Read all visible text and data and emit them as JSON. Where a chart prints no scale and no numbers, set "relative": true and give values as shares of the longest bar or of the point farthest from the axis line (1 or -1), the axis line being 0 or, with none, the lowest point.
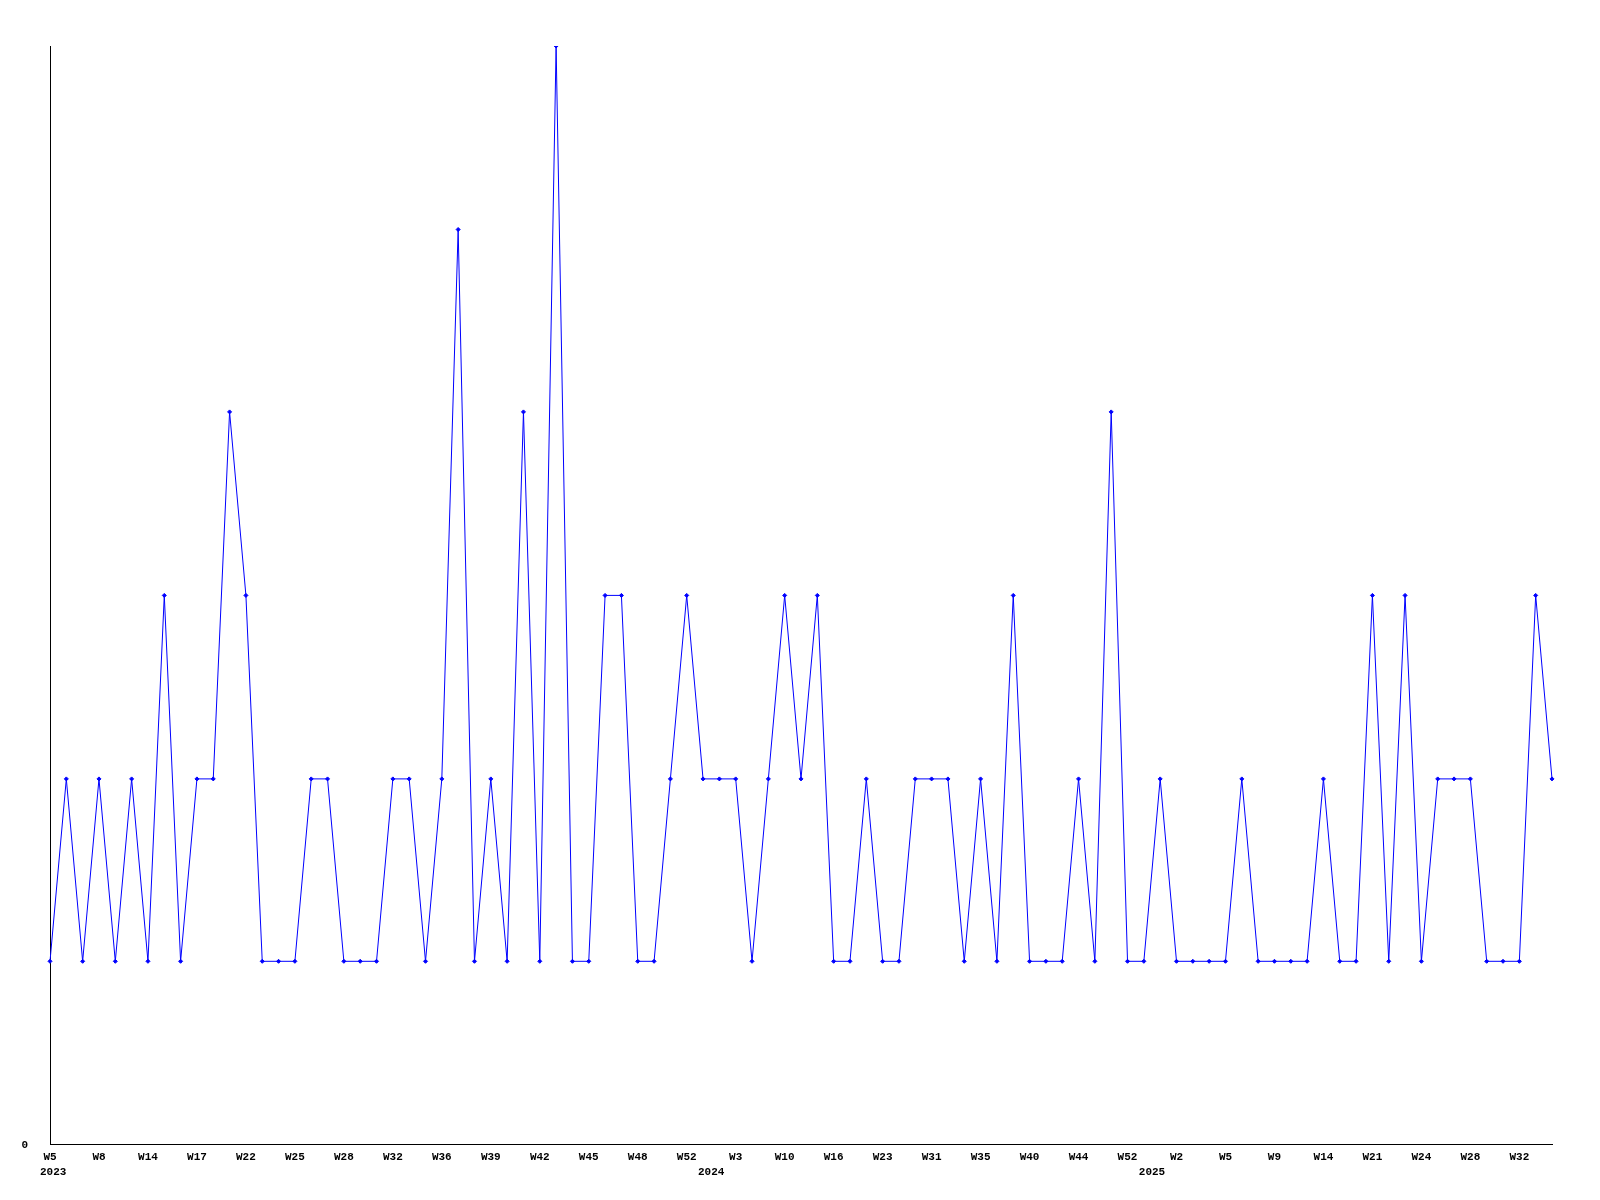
{
  "chart_data": {
    "type": "line",
    "relative": true,
    "color": "#0000ff",
    "marker": "diamond",
    "grid": false,
    "legend": false,
    "categories": [
      "W5",
      null,
      null,
      "W8",
      null,
      null,
      "W14",
      null,
      null,
      "W17",
      null,
      null,
      "W22",
      null,
      null,
      "W25",
      null,
      null,
      "W28",
      null,
      null,
      "W32",
      null,
      null,
      "W36",
      null,
      null,
      "W39",
      null,
      null,
      "W42",
      null,
      null,
      "W45",
      null,
      null,
      "W48",
      null,
      null,
      "W52",
      null,
      null,
      "W3",
      null,
      null,
      "W10",
      null,
      null,
      "W16",
      null,
      null,
      "W23",
      null,
      null,
      "W31",
      null,
      null,
      "W35",
      null,
      null,
      "W40",
      null,
      null,
      "W44",
      null,
      null,
      "W52",
      null,
      null,
      "W2",
      null,
      null,
      "W5",
      null,
      null,
      "W9",
      null,
      null,
      "W14",
      null,
      null,
      "W21",
      null,
      null,
      "W24",
      null,
      null,
      "W28",
      null,
      null,
      "W32",
      null,
      null
    ],
    "values": [
      0.167,
      0.333,
      0.167,
      0.333,
      0.167,
      0.333,
      0.167,
      0.5,
      0.167,
      0.333,
      0.333,
      0.667,
      0.5,
      0.167,
      0.167,
      0.167,
      0.333,
      0.333,
      0.167,
      0.167,
      0.167,
      0.333,
      0.333,
      0.167,
      0.333,
      0.833,
      0.167,
      0.333,
      0.167,
      0.667,
      0.167,
      1,
      0.167,
      0.167,
      0.5,
      0.5,
      0.167,
      0.167,
      0.333,
      0.5,
      0.333,
      0.333,
      0.333,
      0.167,
      0.333,
      0.5,
      0.333,
      0.5,
      0.167,
      0.167,
      0.333,
      0.167,
      0.167,
      0.333,
      0.333,
      0.333,
      0.167,
      0.333,
      0.167,
      0.5,
      0.167,
      0.167,
      0.167,
      0.333,
      0.167,
      0.667,
      0.167,
      0.167,
      0.333,
      0.167,
      0.167,
      0.167,
      0.167,
      0.333,
      0.167,
      0.167,
      0.167,
      0.167,
      0.333,
      0.167,
      0.167,
      0.5,
      0.167,
      0.5,
      0.167,
      0.333,
      0.333,
      0.333,
      0.167,
      0.167,
      0.167,
      0.5,
      0.333
    ],
    "annotations": [
      "0",
      "2023",
      "2024",
      "2025"
    ]
  }
}
